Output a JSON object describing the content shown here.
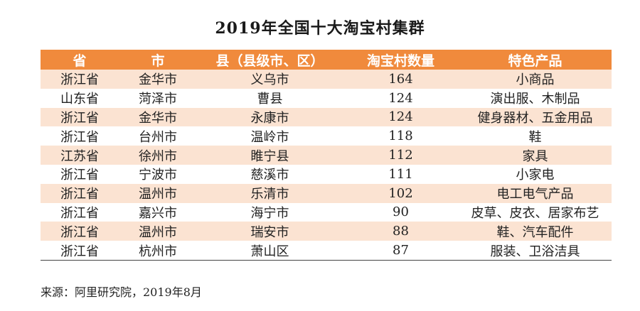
{
  "title": "2019年全国十大淘宝村集群",
  "table": {
    "headers": [
      "省",
      "市",
      "县（县级市、区）",
      "淘宝村数量",
      "特色产品"
    ],
    "rows": [
      [
        "浙江省",
        "金华市",
        "义乌市",
        "164",
        "小商品"
      ],
      [
        "山东省",
        "菏泽市",
        "曹县",
        "124",
        "演出服、木制品"
      ],
      [
        "浙江省",
        "金华市",
        "永康市",
        "124",
        "健身器材、五金用品"
      ],
      [
        "浙江省",
        "台州市",
        "温岭市",
        "118",
        "鞋"
      ],
      [
        "江苏省",
        "徐州市",
        "睢宁县",
        "112",
        "家具"
      ],
      [
        "浙江省",
        "宁波市",
        "慈溪市",
        "111",
        "小家电"
      ],
      [
        "浙江省",
        "温州市",
        "乐清市",
        "102",
        "电工电气产品"
      ],
      [
        "浙江省",
        "嘉兴市",
        "海宁市",
        "90",
        "皮草、皮衣、居家布艺"
      ],
      [
        "浙江省",
        "温州市",
        "瑞安市",
        "88",
        "鞋、汽车配件"
      ],
      [
        "浙江省",
        "杭州市",
        "萧山区",
        "87",
        "服装、卫浴洁具"
      ]
    ]
  },
  "source": "来源：阿里研究院，2019年8月",
  "colors": {
    "header_bg": "#f08a3c",
    "stripe_bg": "#fbe3d2"
  }
}
